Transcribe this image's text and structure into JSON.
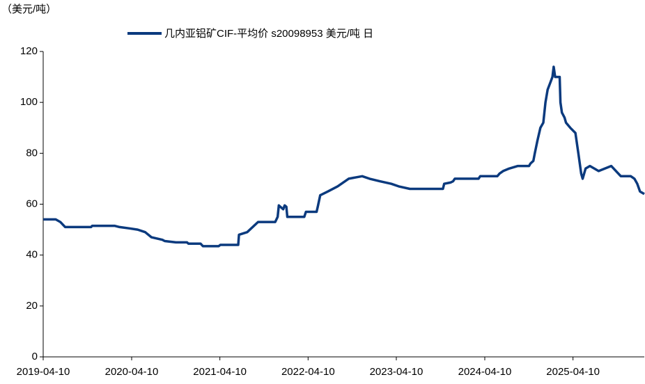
{
  "chart_data": {
    "type": "line",
    "unit_label": "（美元/吨）",
    "series": [
      {
        "name": "几内亚铝矿CIF-平均价 s20098953 美元/吨 日",
        "color": "#0b3a7e",
        "x": [
          "2019-04-10",
          "2019-06-01",
          "2019-06-20",
          "2019-07-10",
          "2019-10-25",
          "2019-10-30",
          "2020-01-30",
          "2020-02-20",
          "2020-04-01",
          "2020-05-05",
          "2020-06-05",
          "2020-07-01",
          "2020-08-15",
          "2020-08-25",
          "2020-10-10",
          "2020-11-25",
          "2020-12-01",
          "2021-01-20",
          "2021-01-30",
          "2021-04-05",
          "2021-04-12",
          "2021-06-25",
          "2021-06-28",
          "2021-08-01",
          "2021-09-15",
          "2021-11-25",
          "2021-12-05",
          "2021-12-10",
          "2021-12-28",
          "2022-01-03",
          "2022-01-10",
          "2022-01-14",
          "2022-03-25",
          "2022-04-01",
          "2022-05-15",
          "2022-05-20",
          "2022-05-30",
          "2022-07-01",
          "2022-08-10",
          "2022-09-25",
          "2022-11-20",
          "2022-12-20",
          "2023-02-01",
          "2023-03-20",
          "2023-04-20",
          "2023-06-05",
          "2023-10-20",
          "2023-10-25",
          "2023-11-20",
          "2023-12-01",
          "2023-12-08",
          "2024-03-15",
          "2024-03-22",
          "2024-06-01",
          "2024-06-10",
          "2024-06-25",
          "2024-07-20",
          "2024-08-25",
          "2024-10-10",
          "2024-10-16",
          "2024-10-28",
          "2024-11-03",
          "2024-11-14",
          "2024-11-26",
          "2024-12-08",
          "2024-12-17",
          "2024-12-26",
          "2025-01-07",
          "2025-01-15",
          "2025-01-20",
          "2025-01-26",
          "2025-02-14",
          "2025-02-17",
          "2025-02-23",
          "2025-03-06",
          "2025-03-12",
          "2025-03-30",
          "2025-04-20",
          "2025-05-02",
          "2025-05-14",
          "2025-05-20",
          "2025-06-01",
          "2025-06-19",
          "2025-07-07",
          "2025-07-25",
          "2025-08-20",
          "2025-09-15",
          "2025-10-25",
          "2025-12-05",
          "2025-12-20",
          "2026-01-01",
          "2026-01-12",
          "2026-01-30"
        ],
        "values": [
          54,
          54,
          53,
          51,
          51,
          51.5,
          51.5,
          51,
          50.5,
          50,
          49,
          47,
          46,
          45.5,
          45,
          45,
          44.5,
          44.5,
          43.5,
          43.5,
          44,
          44,
          48,
          49,
          53,
          53,
          55,
          59.5,
          58,
          59.5,
          59,
          55,
          55,
          57,
          57,
          59,
          63.5,
          65,
          67,
          70,
          71,
          70,
          69,
          68,
          67,
          66,
          66,
          68,
          68.5,
          69,
          70,
          70,
          71,
          71,
          72,
          73,
          74,
          75,
          75,
          76,
          77,
          80,
          85,
          90,
          92,
          100,
          105,
          108,
          110,
          114,
          110,
          110,
          100,
          96,
          94,
          92,
          90,
          88,
          80,
          72,
          70,
          74,
          75,
          74,
          73,
          74,
          75,
          71,
          71,
          70,
          68,
          65,
          64
        ]
      }
    ],
    "xlim": [
      "2019-04-10",
      "2026-01-30"
    ],
    "xticks": [
      "2019-04-10",
      "2020-04-10",
      "2021-04-10",
      "2022-04-10",
      "2023-04-10",
      "2024-04-10",
      "2025-04-10"
    ],
    "ylim": [
      0,
      120
    ],
    "yticks": [
      0,
      20,
      40,
      60,
      80,
      100,
      120
    ],
    "grid": false
  }
}
